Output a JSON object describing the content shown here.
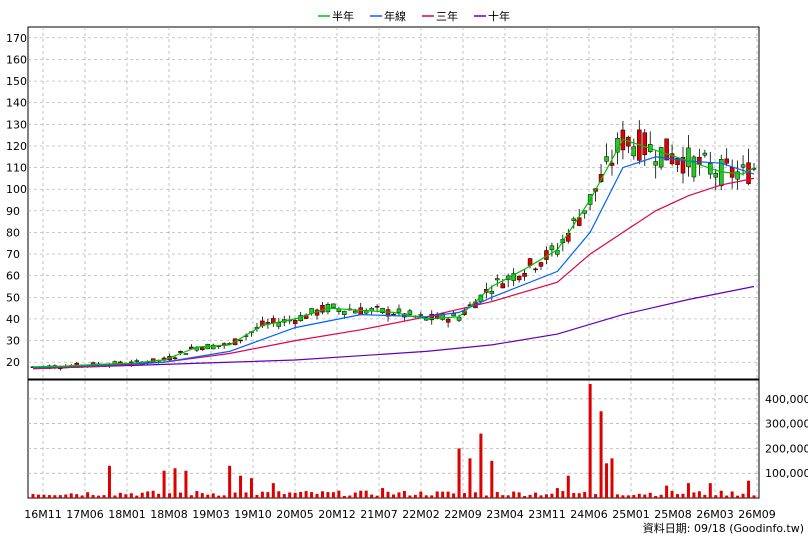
{
  "chart_data": {
    "type": "candlestick-volume",
    "legend": [
      {
        "label": "半年",
        "color": "#00c000"
      },
      {
        "label": "年線",
        "color": "#0060ff"
      },
      {
        "label": "三年",
        "color": "#e00050"
      },
      {
        "label": "十年",
        "color": "#6000c0"
      }
    ],
    "price_axis": {
      "ylim": [
        15,
        175
      ],
      "ticks": [
        20,
        30,
        40,
        50,
        60,
        70,
        80,
        90,
        100,
        110,
        120,
        130,
        140,
        150,
        160,
        170
      ]
    },
    "volume_axis": {
      "ylim": [
        0,
        460000
      ],
      "ticks": [
        100000,
        200000,
        300000,
        400000
      ],
      "tick_labels": [
        "100,000",
        "200,000",
        "300,000",
        "400,000"
      ]
    },
    "x_labels": [
      "16M11",
      "17M06",
      "18M01",
      "18M08",
      "19M03",
      "19M10",
      "20M05",
      "20M12",
      "21M07",
      "22M02",
      "22M09",
      "23M04",
      "23M11",
      "24M06",
      "25M01",
      "25M08",
      "26M03",
      "26M09"
    ],
    "month_range": {
      "start": "2016-11",
      "end": "2026-09"
    },
    "ma_half_year": [
      [
        0,
        17.8
      ],
      [
        6,
        18.2
      ],
      [
        12,
        19
      ],
      [
        18,
        19.5
      ],
      [
        24,
        21
      ],
      [
        30,
        27
      ],
      [
        36,
        28
      ],
      [
        42,
        37
      ],
      [
        48,
        40
      ],
      [
        54,
        45
      ],
      [
        60,
        44
      ],
      [
        66,
        43
      ],
      [
        72,
        40
      ],
      [
        78,
        41
      ],
      [
        84,
        55
      ],
      [
        90,
        63
      ],
      [
        96,
        72
      ],
      [
        102,
        95
      ],
      [
        108,
        123
      ],
      [
        114,
        118
      ],
      [
        120,
        113
      ],
      [
        126,
        108
      ],
      [
        130,
        107
      ],
      [
        132,
        110
      ]
    ],
    "ma_year": [
      [
        0,
        17.5
      ],
      [
        12,
        18.5
      ],
      [
        24,
        20
      ],
      [
        36,
        25
      ],
      [
        48,
        36
      ],
      [
        60,
        42
      ],
      [
        72,
        41
      ],
      [
        78,
        43
      ],
      [
        84,
        50
      ],
      [
        96,
        62
      ],
      [
        102,
        80
      ],
      [
        108,
        110
      ],
      [
        114,
        115
      ],
      [
        120,
        113
      ],
      [
        126,
        112
      ],
      [
        132,
        107
      ]
    ],
    "ma_3year": [
      [
        0,
        17
      ],
      [
        12,
        18
      ],
      [
        24,
        20
      ],
      [
        36,
        24
      ],
      [
        48,
        30
      ],
      [
        60,
        35
      ],
      [
        72,
        41
      ],
      [
        84,
        48
      ],
      [
        96,
        57
      ],
      [
        102,
        70
      ],
      [
        108,
        80
      ],
      [
        114,
        90
      ],
      [
        120,
        97
      ],
      [
        126,
        102
      ],
      [
        132,
        105
      ]
    ],
    "ma_10year": [
      [
        0,
        17
      ],
      [
        24,
        19
      ],
      [
        48,
        21
      ],
      [
        60,
        23
      ],
      [
        72,
        25
      ],
      [
        84,
        28
      ],
      [
        96,
        33
      ],
      [
        108,
        42
      ],
      [
        120,
        49
      ],
      [
        132,
        55
      ]
    ],
    "volume_spikes": [
      [
        14,
        130000
      ],
      [
        24,
        110000
      ],
      [
        26,
        120000
      ],
      [
        28,
        110000
      ],
      [
        36,
        130000
      ],
      [
        38,
        90000
      ],
      [
        40,
        80000
      ],
      [
        44,
        60000
      ],
      [
        64,
        40000
      ],
      [
        78,
        200000
      ],
      [
        80,
        160000
      ],
      [
        82,
        260000
      ],
      [
        84,
        150000
      ],
      [
        96,
        40000
      ],
      [
        98,
        90000
      ],
      [
        102,
        460000
      ],
      [
        104,
        350000
      ],
      [
        105,
        140000
      ],
      [
        106,
        160000
      ],
      [
        116,
        50000
      ],
      [
        120,
        60000
      ],
      [
        124,
        60000
      ],
      [
        131,
        70000
      ]
    ],
    "footer": "資料日期: 09/18  (Goodinfo.tw)"
  }
}
